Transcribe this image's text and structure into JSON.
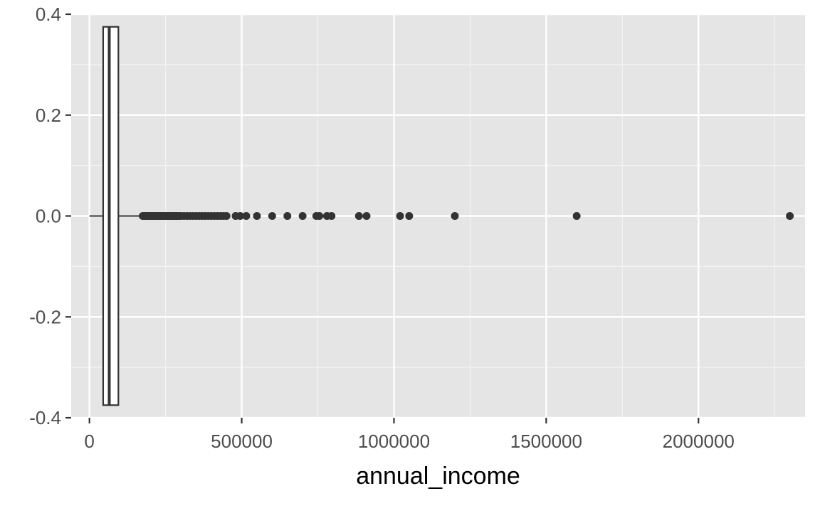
{
  "chart_data": {
    "type": "boxplot",
    "xlabel": "annual_income",
    "ylabel": "",
    "xlim": [
      -60000,
      2350000
    ],
    "ylim": [
      -0.4,
      0.4
    ],
    "x_ticks": [
      0,
      500000,
      1000000,
      1500000,
      2000000
    ],
    "x_tick_labels": [
      "0",
      "500000",
      "1000000",
      "1500000",
      "2000000"
    ],
    "y_ticks": [
      0.4,
      0.2,
      0.0,
      -0.2,
      -0.4
    ],
    "y_tick_labels": [
      "0.4",
      "0.2",
      "0.0",
      "-0.2",
      "-0.4"
    ],
    "grid": true,
    "background": "#e5e5e5",
    "box": {
      "y": 0,
      "width": 0.75,
      "whisker_low": 0,
      "q1": 45000,
      "median": 65000,
      "q3": 95000,
      "whisker_high": 170000
    },
    "outliers": [
      175000,
      180000,
      185000,
      190000,
      195000,
      200000,
      205000,
      210000,
      215000,
      220000,
      225000,
      230000,
      235000,
      240000,
      245000,
      250000,
      255000,
      260000,
      265000,
      270000,
      275000,
      280000,
      285000,
      290000,
      295000,
      300000,
      310000,
      320000,
      330000,
      340000,
      350000,
      360000,
      370000,
      380000,
      390000,
      400000,
      410000,
      420000,
      430000,
      440000,
      450000,
      480000,
      495000,
      515000,
      550000,
      600000,
      650000,
      700000,
      745000,
      755000,
      780000,
      795000,
      885000,
      910000,
      1020000,
      1050000,
      1200000,
      1600000,
      2300000
    ],
    "colors": {
      "panel": "#e5e5e5",
      "grid_major": "#ffffff",
      "grid_minor": "#f2f2f2",
      "mark": "#333333",
      "box_fill": "#ffffff",
      "tick_text": "#4d4d4d",
      "tick_mark": "#333333",
      "axis_title": "#000000"
    }
  }
}
